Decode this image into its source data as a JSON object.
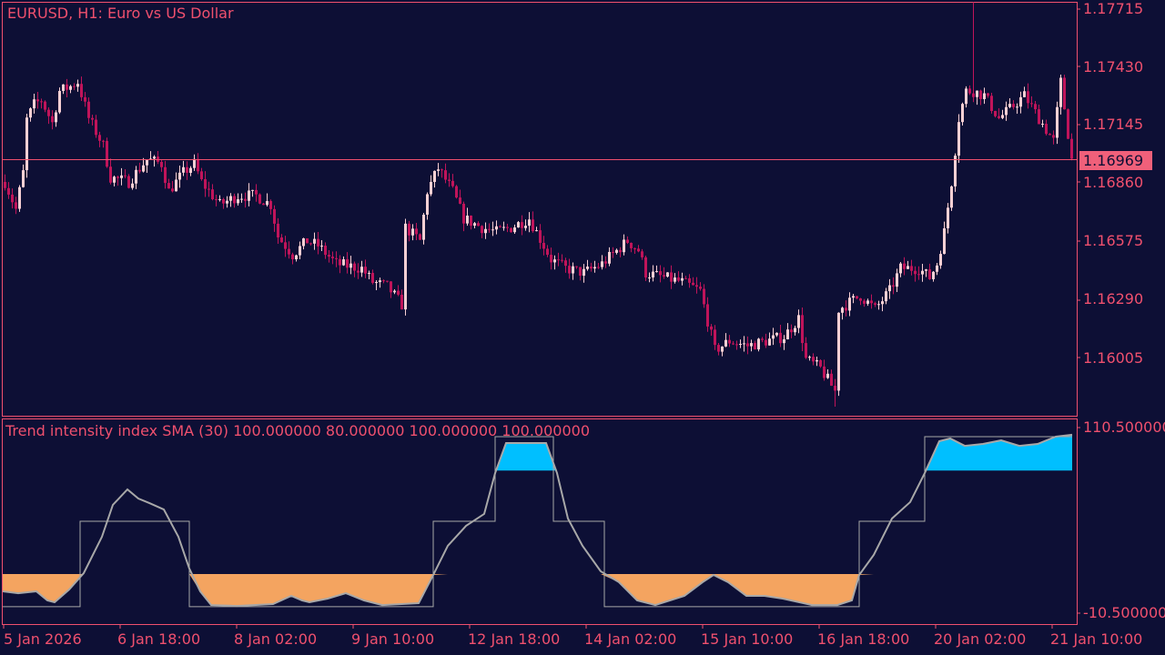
{
  "header": {
    "title": "EURUSD, H1:  Euro vs US Dollar"
  },
  "price_axis": [
    "1.17715",
    "1.17430",
    "1.17145",
    "1.16860",
    "1.16575",
    "1.16290",
    "1.16005"
  ],
  "current_price": "1.16969",
  "indicator": {
    "title": "Trend intensity index SMA (30) 100.000000 80.000000 100.000000 100.000000",
    "axis": [
      "110.500000",
      "-10.500000"
    ]
  },
  "time_axis": [
    "5 Jan 2026",
    "6 Jan 18:00",
    "8 Jan 02:00",
    "9 Jan 10:00",
    "12 Jan 18:00",
    "14 Jan 02:00",
    "15 Jan 10:00",
    "16 Jan 18:00",
    "20 Jan 02:00",
    "21 Jan 10:00"
  ],
  "colors": {
    "background": "#0d0f35",
    "text": "#f0506e",
    "bull": "#f8d0d4",
    "bear": "#c0145a",
    "line": "#a8a8a8",
    "fill_low": "#f4a460",
    "fill_high": "#00bfff"
  },
  "chart_data": [
    {
      "type": "candlestick",
      "title": "EURUSD, H1",
      "ylim": [
        1.1575,
        1.178
      ],
      "current_price": 1.16969,
      "close_waypoints": [
        [
          0,
          1.1686
        ],
        [
          3,
          1.16726
        ],
        [
          5,
          1.16905
        ],
        [
          5,
          1.17127
        ],
        [
          8,
          1.17239
        ],
        [
          10,
          1.17261
        ],
        [
          13,
          1.17149
        ],
        [
          15,
          1.17305
        ],
        [
          18,
          1.17328
        ],
        [
          20,
          1.1735
        ],
        [
          23,
          1.17172
        ],
        [
          27,
          1.17038
        ],
        [
          29,
          1.16882
        ],
        [
          34,
          1.1686
        ],
        [
          39,
          1.16971
        ],
        [
          43,
          1.16949
        ],
        [
          45,
          1.16815
        ],
        [
          49,
          1.16905
        ],
        [
          52,
          1.16949
        ],
        [
          54,
          1.1686
        ],
        [
          59,
          1.16749
        ],
        [
          64,
          1.16793
        ],
        [
          69,
          1.16793
        ],
        [
          73,
          1.16749
        ],
        [
          75,
          1.16593
        ],
        [
          79,
          1.16504
        ],
        [
          83,
          1.16571
        ],
        [
          86,
          1.16548
        ],
        [
          91,
          1.16459
        ],
        [
          98,
          1.16437
        ],
        [
          101,
          1.1637
        ],
        [
          105,
          1.16348
        ],
        [
          109,
          1.16259
        ],
        [
          110,
          1.16637
        ],
        [
          114,
          1.16571
        ],
        [
          116,
          1.16815
        ],
        [
          119,
          1.16927
        ],
        [
          123,
          1.16815
        ],
        [
          126,
          1.16682
        ],
        [
          131,
          1.16637
        ],
        [
          135,
          1.16615
        ],
        [
          139,
          1.16637
        ],
        [
          144,
          1.16682
        ],
        [
          148,
          1.16548
        ],
        [
          150,
          1.16481
        ],
        [
          154,
          1.16437
        ],
        [
          159,
          1.16415
        ],
        [
          164,
          1.16459
        ],
        [
          171,
          1.16571
        ],
        [
          174,
          1.16526
        ],
        [
          176,
          1.16415
        ],
        [
          181,
          1.16392
        ],
        [
          186,
          1.1637
        ],
        [
          191,
          1.16326
        ],
        [
          195,
          1.16036
        ],
        [
          199,
          1.16081
        ],
        [
          204,
          1.16058
        ],
        [
          209,
          1.16081
        ],
        [
          214,
          1.16103
        ],
        [
          218,
          1.16192
        ],
        [
          220,
          1.15992
        ],
        [
          224,
          1.15947
        ],
        [
          228,
          1.15836
        ],
        [
          229,
          1.16237
        ],
        [
          233,
          1.16281
        ],
        [
          235,
          1.16303
        ],
        [
          239,
          1.16237
        ],
        [
          243,
          1.16326
        ],
        [
          246,
          1.16437
        ],
        [
          251,
          1.16437
        ],
        [
          254,
          1.16392
        ],
        [
          256,
          1.16459
        ],
        [
          258,
          1.16615
        ],
        [
          260,
          1.1686
        ],
        [
          262,
          1.17172
        ],
        [
          264,
          1.17305
        ],
        [
          266,
          1.17305
        ],
        [
          269,
          1.17283
        ],
        [
          273,
          1.17172
        ],
        [
          276,
          1.17216
        ],
        [
          280,
          1.17283
        ],
        [
          284,
          1.17172
        ],
        [
          288,
          1.1706
        ],
        [
          290,
          1.1735
        ],
        [
          293,
          1.16969
        ]
      ],
      "extreme_wicks": [
        [
          266,
          1.1774
        ],
        [
          228,
          1.1576
        ]
      ]
    },
    {
      "type": "line",
      "title": "Trend intensity index SMA (30)",
      "ylim": [
        -10.5,
        110.5
      ],
      "levels": [
        15,
        82.5
      ],
      "tii": [
        [
          0,
          3.7
        ],
        [
          4,
          2.5
        ],
        [
          9,
          3.7
        ],
        [
          12,
          -2.2
        ],
        [
          14,
          -3.4
        ],
        [
          18,
          4.9
        ],
        [
          22,
          15.6
        ],
        [
          27,
          39.3
        ],
        [
          30,
          60.1
        ],
        [
          34,
          70.2
        ],
        [
          37,
          64.2
        ],
        [
          40,
          61.3
        ],
        [
          44,
          57.1
        ],
        [
          48,
          39.3
        ],
        [
          51,
          18.6
        ],
        [
          54,
          3.7
        ],
        [
          57,
          -5.2
        ],
        [
          64,
          -5.8
        ],
        [
          74,
          -4.6
        ],
        [
          79,
          0.8
        ],
        [
          82,
          -2.2
        ],
        [
          84,
          -3.4
        ],
        [
          89,
          -1.0
        ],
        [
          94,
          2.5
        ],
        [
          99,
          -2.2
        ],
        [
          104,
          -5.2
        ],
        [
          114,
          -4.0
        ],
        [
          118,
          14.4
        ],
        [
          122,
          33.4
        ],
        [
          127,
          46.4
        ],
        [
          132,
          54.2
        ],
        [
          135,
          80.8
        ],
        [
          138,
          100.4
        ],
        [
          149,
          100.4
        ],
        [
          152,
          80.8
        ],
        [
          155,
          51.2
        ],
        [
          159,
          33.4
        ],
        [
          164,
          16.8
        ],
        [
          169,
          9.7
        ],
        [
          174,
          -2.2
        ],
        [
          179,
          -5.2
        ],
        [
          187,
          0.8
        ],
        [
          192,
          9.7
        ],
        [
          195,
          14.4
        ],
        [
          199,
          9.7
        ],
        [
          204,
          0.8
        ],
        [
          209,
          0.8
        ],
        [
          214,
          -1.0
        ],
        [
          222,
          -5.2
        ],
        [
          229,
          -5.2
        ],
        [
          233,
          -2.2
        ],
        [
          235,
          14.4
        ],
        [
          239,
          27.5
        ],
        [
          244,
          51.2
        ],
        [
          249,
          61.9
        ],
        [
          253,
          80.8
        ],
        [
          257,
          101.6
        ],
        [
          260,
          103.4
        ],
        [
          264,
          98.6
        ],
        [
          269,
          99.8
        ],
        [
          274,
          102.2
        ],
        [
          279,
          98.6
        ],
        [
          284,
          99.8
        ],
        [
          289,
          104.6
        ],
        [
          293,
          105.8
        ]
      ],
      "step": [
        [
          0,
          -6.3
        ],
        [
          21,
          -6.3
        ],
        [
          21,
          49.4
        ],
        [
          51,
          49.4
        ],
        [
          51,
          -6.3
        ],
        [
          118,
          -6.3
        ],
        [
          118,
          49.4
        ],
        [
          135,
          49.4
        ],
        [
          135,
          104.6
        ],
        [
          151,
          104.6
        ],
        [
          151,
          49.4
        ],
        [
          165,
          49.4
        ],
        [
          165,
          -6.3
        ],
        [
          235,
          -6.3
        ],
        [
          235,
          49.4
        ],
        [
          253,
          49.4
        ],
        [
          253,
          104.6
        ],
        [
          293,
          104.6
        ]
      ]
    }
  ]
}
